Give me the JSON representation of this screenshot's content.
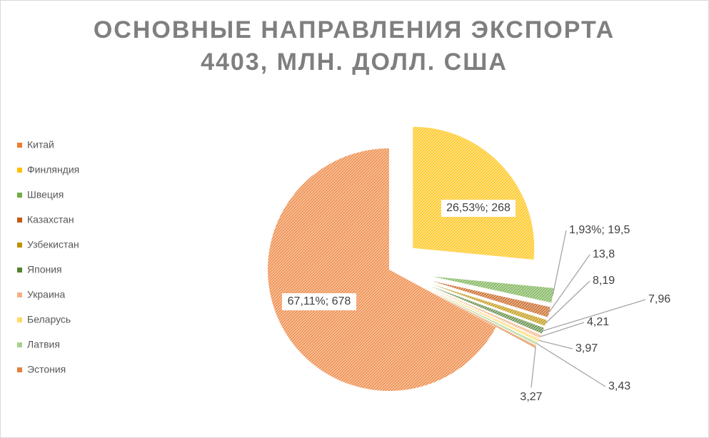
{
  "chart_data": {
    "type": "pie",
    "title": [
      "ОСНОВНЫЕ НАПРАВЛЕНИЯ ЭКСПОРТА",
      "4403, МЛН. ДОЛЛ. США"
    ],
    "categories": [
      "Китай",
      "Финляндия",
      "Швеция",
      "Казахстан",
      "Узбекистан",
      "Япония",
      "Украина",
      "Беларусь",
      "Латвия",
      "Эстония"
    ],
    "values": [
      678,
      268,
      19.5,
      13.8,
      8.19,
      7.96,
      4.21,
      3.97,
      3.43,
      3.27
    ],
    "value_labels": [
      "67,11%; 678",
      "26,53%; 268",
      "1,93%; 19,5",
      "13,8",
      "8,19",
      "7,96",
      "4,21",
      "3,97",
      "3,43",
      "3,27"
    ],
    "colors": [
      "#ed7d31",
      "#ffc000",
      "#70ad47",
      "#c55a11",
      "#bf9000",
      "#548235",
      "#f4b183",
      "#ffd966",
      "#a9d18e",
      "#e2823e"
    ],
    "legend": "left"
  }
}
